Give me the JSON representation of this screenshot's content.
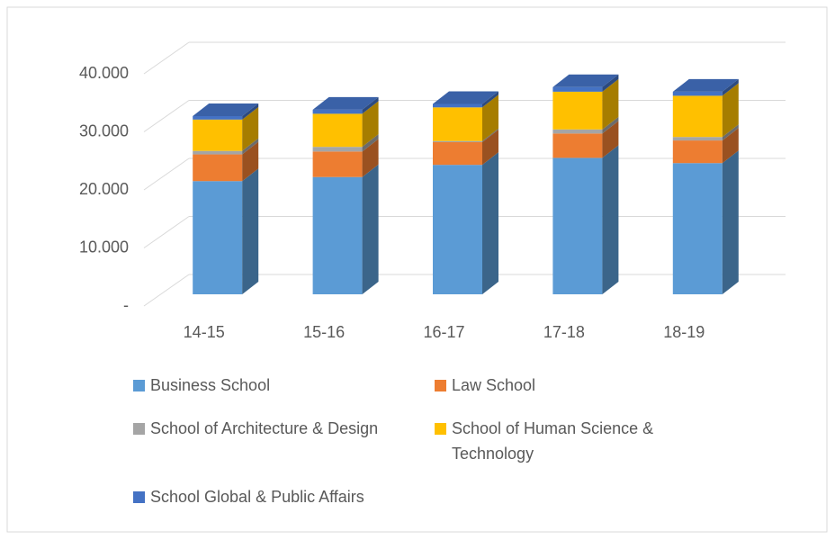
{
  "chart_data": {
    "type": "bar3d_stacked",
    "categories": [
      "14-15",
      "15-16",
      "16-17",
      "17-18",
      "18-19"
    ],
    "series": [
      {
        "name": "Business School",
        "color": "#5b9bd5",
        "values": [
          19500,
          20200,
          22300,
          23500,
          22600
        ]
      },
      {
        "name": "Law School",
        "color": "#ed7d31",
        "values": [
          4600,
          4400,
          3900,
          4200,
          3900
        ]
      },
      {
        "name": "School of Architecture & Design",
        "color": "#a5a5a5",
        "values": [
          600,
          800,
          200,
          700,
          600
        ]
      },
      {
        "name": "School of Human Science & Technology",
        "color": "#ffc000",
        "values": [
          5400,
          5700,
          5800,
          6500,
          7100
        ]
      },
      {
        "name": "School Global & Public Affairs",
        "color": "#4472c4",
        "values": [
          600,
          700,
          600,
          800,
          700
        ]
      }
    ],
    "ylim": [
      0,
      40000
    ],
    "yticks": [
      {
        "value": 0,
        "label": "-"
      },
      {
        "value": 10000,
        "label": "10.000"
      },
      {
        "value": 20000,
        "label": "20.000"
      },
      {
        "value": 30000,
        "label": "30.000"
      },
      {
        "value": 40000,
        "label": "40.000"
      }
    ],
    "grid": true
  }
}
